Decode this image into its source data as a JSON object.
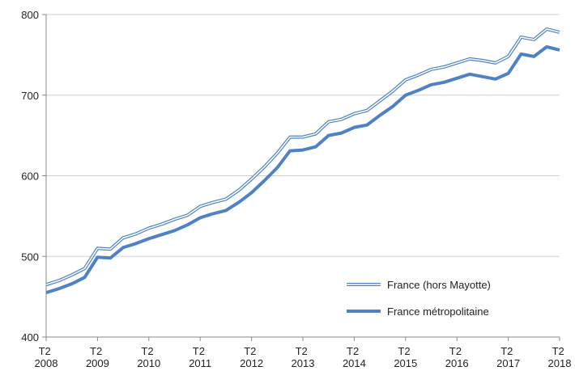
{
  "chart_data": {
    "type": "line",
    "categories": [
      "T2 2008",
      null,
      null,
      null,
      "T2 2009",
      null,
      null,
      null,
      "T2 2010",
      null,
      null,
      null,
      "T2 2011",
      null,
      null,
      null,
      "T2 2012",
      null,
      null,
      null,
      "T2 2013",
      null,
      null,
      null,
      "T2 2014",
      null,
      null,
      null,
      "T2 2015",
      null,
      null,
      null,
      "T2 2016",
      null,
      null,
      null,
      "T2 2017",
      null,
      null,
      null,
      "T2 2018"
    ],
    "series": [
      {
        "name": "France (hors Mayotte)",
        "color": "#4f81c7",
        "style": "double",
        "values": [
          465,
          470,
          477,
          485,
          510,
          509,
          523,
          528,
          535,
          540,
          546,
          551,
          562,
          567,
          571,
          582,
          596,
          611,
          628,
          648,
          648,
          652,
          667,
          670,
          677,
          681,
          693,
          705,
          719,
          725,
          732,
          735,
          740,
          745,
          743,
          740,
          748,
          772,
          769,
          782,
          778
        ]
      },
      {
        "name": "France métropolitaine",
        "color": "#4f81c7",
        "style": "thick",
        "values": [
          455,
          460,
          466,
          474,
          499,
          498,
          511,
          516,
          522,
          527,
          532,
          539,
          548,
          553,
          557,
          567,
          579,
          594,
          610,
          631,
          632,
          636,
          650,
          653,
          660,
          663,
          675,
          686,
          700,
          706,
          713,
          716,
          721,
          726,
          723,
          720,
          727,
          751,
          748,
          760,
          756
        ]
      }
    ],
    "ylim": [
      400,
      800
    ],
    "yticks": [
      400,
      500,
      600,
      700,
      800
    ],
    "grid": true,
    "legend": "lower right"
  }
}
